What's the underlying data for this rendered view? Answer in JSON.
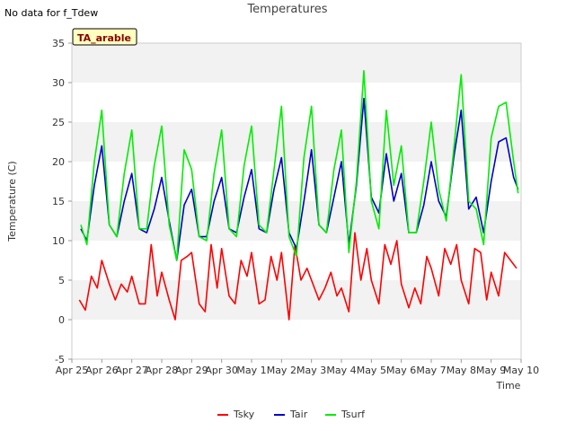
{
  "notice": "No data for f_Tdew",
  "station_label": "TA_arable",
  "colors": {
    "Tsky": "#ff0000",
    "Tair": "#0000cc",
    "Tsurf": "#00ee00",
    "band": "#f2f2f2",
    "station_bg": "#ffffc0",
    "station_text": "#8b0000"
  },
  "chart_data": {
    "type": "line",
    "title": "Temperatures",
    "xlabel": "Time",
    "ylabel": "Temperature (C)",
    "ylim": [
      -5,
      35
    ],
    "yticks": [
      -5,
      0,
      5,
      10,
      15,
      20,
      25,
      30,
      35
    ],
    "xlim": [
      0,
      15
    ],
    "xticks": [
      0,
      1,
      2,
      3,
      4,
      5,
      6,
      7,
      8,
      9,
      10,
      11,
      12,
      13,
      14,
      15
    ],
    "xtick_labels": [
      "Apr 25",
      "Apr 26",
      "Apr 27",
      "Apr 28",
      "Apr 29",
      "Apr 30",
      "May 1",
      "May 2",
      "May 3",
      "May 4",
      "May 5",
      "May 6",
      "May 7",
      "May 8",
      "May 9",
      "May 10"
    ],
    "legend_position": "bottom-center",
    "grid": "horizontal shaded bands",
    "series": [
      {
        "name": "Tsky",
        "x": [
          0.25,
          0.45,
          0.65,
          0.85,
          1.0,
          1.25,
          1.45,
          1.65,
          1.85,
          2.0,
          2.25,
          2.45,
          2.65,
          2.85,
          3.0,
          3.25,
          3.45,
          3.65,
          3.85,
          4.0,
          4.25,
          4.45,
          4.65,
          4.85,
          5.0,
          5.25,
          5.45,
          5.65,
          5.85,
          6.0,
          6.25,
          6.45,
          6.65,
          6.85,
          7.0,
          7.25,
          7.45,
          7.65,
          7.85,
          8.0,
          8.25,
          8.45,
          8.65,
          8.85,
          9.0,
          9.25,
          9.45,
          9.65,
          9.85,
          10.0,
          10.25,
          10.45,
          10.65,
          10.85,
          11.0,
          11.25,
          11.45,
          11.65,
          11.85,
          12.0,
          12.25,
          12.45,
          12.65,
          12.85,
          13.0,
          13.25,
          13.45,
          13.65,
          13.85,
          14.0,
          14.25,
          14.45,
          14.65,
          14.85
        ],
        "values": [
          2.5,
          1.2,
          5.5,
          4.0,
          7.5,
          4.5,
          2.5,
          4.5,
          3.5,
          5.5,
          2.0,
          2.0,
          9.5,
          3.0,
          6.0,
          2.5,
          0.0,
          7.5,
          8.0,
          8.5,
          2.0,
          1.0,
          9.5,
          4.0,
          9.0,
          3.0,
          2.0,
          7.5,
          5.5,
          8.5,
          2.0,
          2.5,
          8.0,
          5.0,
          8.5,
          0.0,
          9.5,
          5.0,
          6.5,
          5.0,
          2.5,
          4.0,
          6.0,
          3.0,
          4.0,
          1.0,
          11.0,
          5.0,
          9.0,
          5.0,
          2.0,
          9.5,
          7.0,
          10.0,
          4.5,
          1.5,
          4.0,
          2.0,
          8.0,
          6.5,
          3.0,
          9.0,
          7.0,
          9.5,
          5.0,
          2.0,
          9.0,
          8.5,
          2.5,
          6.0,
          3.0,
          8.5,
          7.5,
          6.5
        ]
      },
      {
        "name": "Tair",
        "x": [
          0.3,
          0.5,
          0.75,
          1.0,
          1.25,
          1.5,
          1.75,
          2.0,
          2.25,
          2.5,
          2.75,
          3.0,
          3.25,
          3.5,
          3.75,
          4.0,
          4.25,
          4.5,
          4.75,
          5.0,
          5.25,
          5.5,
          5.75,
          6.0,
          6.25,
          6.5,
          6.75,
          7.0,
          7.25,
          7.5,
          7.75,
          8.0,
          8.25,
          8.5,
          8.75,
          9.0,
          9.25,
          9.5,
          9.75,
          10.0,
          10.25,
          10.5,
          10.75,
          11.0,
          11.25,
          11.5,
          11.75,
          12.0,
          12.25,
          12.5,
          12.75,
          13.0,
          13.25,
          13.5,
          13.75,
          14.0,
          14.25,
          14.5,
          14.75,
          14.9
        ],
        "values": [
          11.5,
          10.0,
          17.0,
          22.0,
          12.0,
          10.5,
          15.0,
          18.5,
          11.5,
          11.0,
          14.0,
          18.0,
          12.5,
          7.5,
          14.5,
          16.5,
          10.5,
          10.5,
          15.0,
          18.0,
          11.5,
          11.0,
          15.5,
          19.0,
          11.5,
          11.0,
          16.5,
          20.5,
          11.0,
          9.0,
          15.0,
          21.5,
          12.0,
          11.0,
          15.5,
          20.0,
          9.5,
          17.0,
          28.0,
          15.5,
          13.5,
          21.0,
          15.0,
          18.5,
          11.0,
          11.0,
          14.5,
          20.0,
          15.0,
          13.0,
          20.5,
          26.5,
          14.0,
          15.5,
          11.0,
          17.5,
          22.5,
          23.0,
          18.0,
          16.5
        ]
      },
      {
        "name": "Tsurf",
        "x": [
          0.3,
          0.5,
          0.75,
          1.0,
          1.25,
          1.5,
          1.75,
          2.0,
          2.25,
          2.5,
          2.75,
          3.0,
          3.25,
          3.5,
          3.75,
          4.0,
          4.25,
          4.5,
          4.75,
          5.0,
          5.25,
          5.5,
          5.75,
          6.0,
          6.25,
          6.5,
          6.75,
          7.0,
          7.25,
          7.5,
          7.75,
          8.0,
          8.25,
          8.5,
          8.75,
          9.0,
          9.25,
          9.5,
          9.75,
          10.0,
          10.25,
          10.5,
          10.75,
          11.0,
          11.25,
          11.5,
          11.75,
          12.0,
          12.25,
          12.5,
          12.75,
          13.0,
          13.25,
          13.5,
          13.75,
          14.0,
          14.25,
          14.5,
          14.75,
          14.9
        ],
        "values": [
          12.0,
          9.5,
          20.0,
          26.5,
          12.0,
          10.5,
          18.5,
          24.0,
          11.5,
          11.5,
          19.5,
          24.5,
          12.0,
          7.5,
          21.5,
          19.0,
          10.5,
          10.0,
          18.5,
          24.0,
          11.5,
          10.5,
          19.5,
          24.5,
          12.0,
          11.0,
          19.0,
          27.0,
          10.5,
          8.0,
          20.5,
          27.0,
          12.0,
          11.0,
          19.0,
          24.0,
          8.5,
          17.5,
          31.5,
          15.0,
          11.5,
          26.5,
          17.0,
          22.0,
          11.0,
          11.0,
          17.5,
          25.0,
          16.5,
          12.5,
          21.5,
          31.0,
          15.0,
          14.0,
          9.5,
          23.0,
          27.0,
          27.5,
          20.0,
          16.0
        ]
      }
    ]
  }
}
